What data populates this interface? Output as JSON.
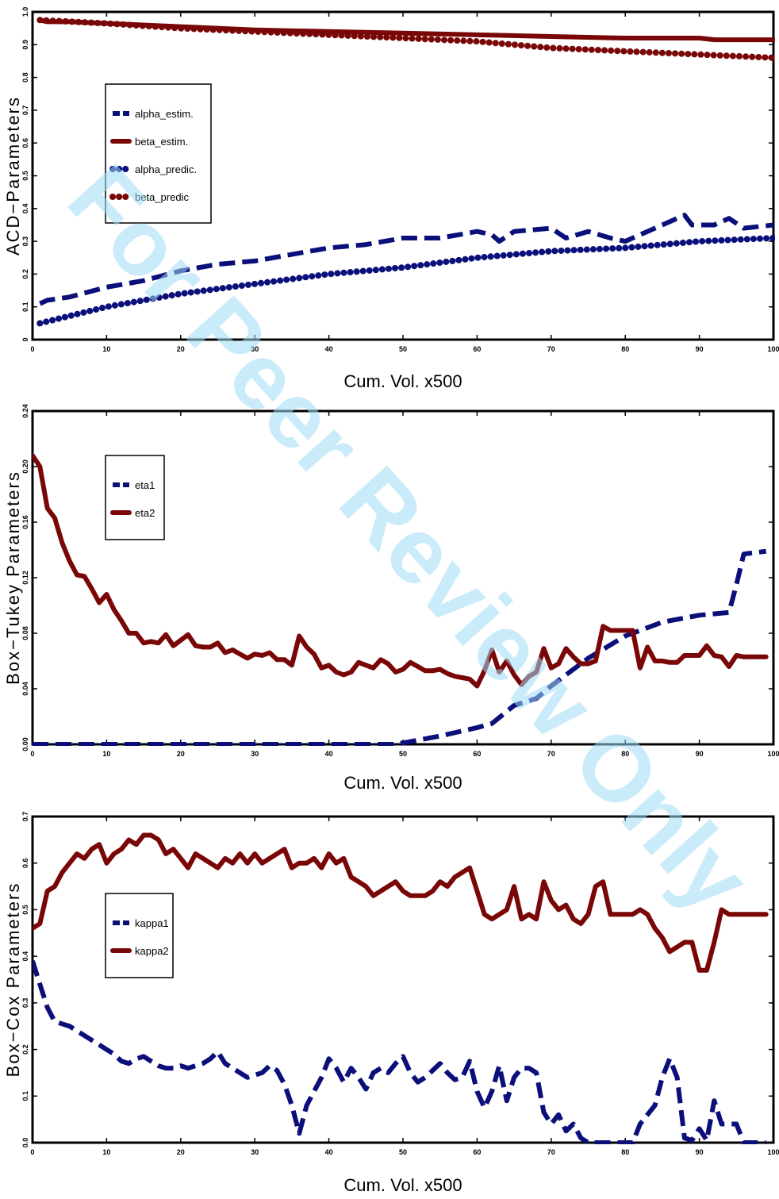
{
  "watermark": "For Peer Review Only",
  "colors": {
    "blue": "#0a0f7a",
    "red": "#7a0707",
    "axis": "#000000",
    "watermark": "#9fdcf5"
  },
  "chart_data": [
    {
      "type": "line",
      "xlabel": "Cum. Vol. x500",
      "ylabel": "ACD−Parameters",
      "xlim": [
        0,
        100
      ],
      "ylim": [
        0,
        1.0
      ],
      "xticks": [
        0,
        10,
        20,
        30,
        40,
        50,
        60,
        70,
        80,
        90,
        100
      ],
      "yticks": [
        0,
        0.1,
        0.2,
        0.3,
        0.4,
        0.5,
        0.6,
        0.7,
        0.8,
        0.9,
        1.0
      ],
      "yticklabels": [
        "0",
        "0.1",
        "0.2",
        "0.3",
        "0.4",
        "0.5",
        "0.6",
        "0.7",
        "0.8",
        "0.9",
        "1.0"
      ],
      "legend_position": "middle-left",
      "series": [
        {
          "name": "alpha_estim.",
          "color": "#0a0f7a",
          "style": "dashed",
          "x": [
            1,
            2,
            5,
            10,
            15,
            20,
            25,
            30,
            35,
            40,
            45,
            50,
            55,
            60,
            62,
            63,
            65,
            70,
            72,
            75,
            78,
            80,
            82,
            85,
            88,
            89,
            92,
            94,
            96,
            100
          ],
          "y": [
            0.11,
            0.12,
            0.13,
            0.16,
            0.18,
            0.21,
            0.23,
            0.24,
            0.26,
            0.28,
            0.29,
            0.31,
            0.31,
            0.33,
            0.32,
            0.3,
            0.33,
            0.34,
            0.31,
            0.33,
            0.31,
            0.3,
            0.32,
            0.35,
            0.38,
            0.35,
            0.35,
            0.37,
            0.34,
            0.35
          ]
        },
        {
          "name": "beta_estim.",
          "color": "#7a0707",
          "style": "solid",
          "x": [
            1,
            2,
            5,
            10,
            20,
            30,
            40,
            50,
            60,
            70,
            80,
            90,
            92,
            94,
            100
          ],
          "y": [
            0.975,
            0.97,
            0.97,
            0.965,
            0.955,
            0.945,
            0.94,
            0.935,
            0.93,
            0.925,
            0.92,
            0.92,
            0.915,
            0.915,
            0.915
          ]
        },
        {
          "name": "alpha_predic.",
          "color": "#0a0f7a",
          "style": "dotted",
          "x": [
            1,
            10,
            20,
            30,
            40,
            50,
            60,
            70,
            80,
            90,
            100
          ],
          "y": [
            0.05,
            0.1,
            0.14,
            0.17,
            0.2,
            0.22,
            0.25,
            0.27,
            0.28,
            0.3,
            0.31
          ]
        },
        {
          "name": "beta_predic",
          "color": "#7a0707",
          "style": "dotted",
          "x": [
            1,
            10,
            20,
            30,
            40,
            50,
            60,
            70,
            80,
            90,
            100
          ],
          "y": [
            0.975,
            0.965,
            0.95,
            0.94,
            0.93,
            0.92,
            0.91,
            0.89,
            0.88,
            0.87,
            0.86
          ]
        }
      ]
    },
    {
      "type": "line",
      "xlabel": "Cum. Vol. x500",
      "ylabel": "Box−Tukey  Parameters",
      "xlim": [
        0,
        100
      ],
      "ylim": [
        0,
        0.24
      ],
      "xticks": [
        0,
        10,
        20,
        30,
        40,
        50,
        60,
        70,
        80,
        90,
        100
      ],
      "yticks": [
        0,
        0.04,
        0.08,
        0.12,
        0.16,
        0.2,
        0.24
      ],
      "yticklabels": [
        "0.00",
        "0.04",
        "0.08",
        "0.12",
        "0.16",
        "0.20",
        "0.24"
      ],
      "legend_position": "top-left",
      "series": [
        {
          "name": "eta1",
          "color": "#0a0f7a",
          "style": "dashed",
          "x": [
            0,
            10,
            20,
            30,
            40,
            49,
            50,
            55,
            60,
            62,
            65,
            68,
            70,
            75,
            80,
            85,
            90,
            94,
            95,
            96,
            99
          ],
          "y": [
            0,
            0,
            0,
            0,
            0,
            0,
            0.001,
            0.006,
            0.012,
            0.015,
            0.028,
            0.033,
            0.042,
            0.062,
            0.078,
            0.088,
            0.093,
            0.095,
            0.115,
            0.137,
            0.139
          ]
        },
        {
          "name": "eta2",
          "color": "#7a0707",
          "style": "solid",
          "x": [
            0,
            1,
            2,
            3,
            4,
            5,
            6,
            7,
            8,
            9,
            10,
            11,
            12,
            13,
            14,
            15,
            16,
            17,
            18,
            19,
            20,
            21,
            22,
            23,
            24,
            25,
            26,
            27,
            28,
            29,
            30,
            31,
            32,
            33,
            34,
            35,
            36,
            37,
            38,
            39,
            40,
            41,
            42,
            43,
            44,
            45,
            46,
            47,
            48,
            49,
            50,
            51,
            52,
            53,
            54,
            55,
            56,
            57,
            58,
            59,
            60,
            61,
            62,
            63,
            64,
            65,
            66,
            67,
            68,
            69,
            70,
            71,
            72,
            73,
            74,
            75,
            76,
            77,
            78,
            79,
            80,
            81,
            82,
            83,
            84,
            85,
            86,
            87,
            88,
            89,
            90,
            91,
            92,
            93,
            94,
            95,
            96,
            97,
            98,
            99
          ],
          "y": [
            0.208,
            0.2,
            0.17,
            0.163,
            0.145,
            0.132,
            0.122,
            0.121,
            0.112,
            0.102,
            0.108,
            0.097,
            0.089,
            0.08,
            0.08,
            0.073,
            0.074,
            0.073,
            0.079,
            0.071,
            0.075,
            0.079,
            0.071,
            0.07,
            0.07,
            0.073,
            0.066,
            0.068,
            0.065,
            0.062,
            0.065,
            0.064,
            0.066,
            0.061,
            0.061,
            0.057,
            0.078,
            0.07,
            0.065,
            0.055,
            0.057,
            0.052,
            0.05,
            0.052,
            0.059,
            0.057,
            0.055,
            0.061,
            0.058,
            0.052,
            0.054,
            0.059,
            0.056,
            0.053,
            0.053,
            0.054,
            0.051,
            0.049,
            0.048,
            0.047,
            0.042,
            0.053,
            0.068,
            0.052,
            0.06,
            0.05,
            0.043,
            0.049,
            0.052,
            0.069,
            0.055,
            0.058,
            0.069,
            0.063,
            0.058,
            0.058,
            0.06,
            0.085,
            0.082,
            0.082,
            0.082,
            0.082,
            0.055,
            0.07,
            0.06,
            0.06,
            0.059,
            0.059,
            0.064,
            0.064,
            0.064,
            0.071,
            0.064,
            0.063,
            0.056,
            0.064,
            0.063,
            0.063,
            0.063,
            0.063
          ]
        }
      ]
    },
    {
      "type": "line",
      "xlabel": "Cum. Vol. x500",
      "ylabel": "Box−Cox  Parameters",
      "xlim": [
        0,
        100
      ],
      "ylim": [
        0,
        0.7
      ],
      "xticks": [
        0,
        10,
        20,
        30,
        40,
        50,
        60,
        70,
        80,
        90,
        100
      ],
      "yticks": [
        0,
        0.1,
        0.2,
        0.3,
        0.4,
        0.5,
        0.6,
        0.7
      ],
      "yticklabels": [
        "0.0",
        "0.1",
        "0.2",
        "0.3",
        "0.4",
        "0.5",
        "0.6",
        "0.7"
      ],
      "legend_position": "middle-left",
      "series": [
        {
          "name": "kappa1",
          "color": "#0a0f7a",
          "style": "dashed",
          "x": [
            0,
            1,
            2,
            3,
            4,
            5,
            6,
            7,
            8,
            9,
            10,
            11,
            12,
            13,
            14,
            15,
            16,
            17,
            18,
            19,
            20,
            21,
            22,
            23,
            24,
            25,
            26,
            27,
            28,
            29,
            30,
            31,
            32,
            33,
            34,
            35,
            36,
            37,
            38,
            39,
            40,
            41,
            42,
            43,
            44,
            45,
            46,
            47,
            48,
            49,
            50,
            51,
            52,
            53,
            54,
            55,
            56,
            57,
            58,
            59,
            60,
            61,
            62,
            63,
            64,
            65,
            66,
            67,
            68,
            69,
            70,
            71,
            72,
            73,
            74,
            75,
            76,
            77,
            78,
            79,
            80,
            81,
            82,
            83,
            84,
            85,
            86,
            87,
            88,
            89,
            90,
            91,
            92,
            93,
            94,
            95,
            96,
            97,
            98,
            99
          ],
          "y": [
            0.39,
            0.34,
            0.29,
            0.26,
            0.255,
            0.25,
            0.24,
            0.23,
            0.22,
            0.21,
            0.2,
            0.19,
            0.175,
            0.17,
            0.18,
            0.185,
            0.175,
            0.165,
            0.16,
            0.16,
            0.165,
            0.16,
            0.165,
            0.17,
            0.18,
            0.195,
            0.17,
            0.16,
            0.15,
            0.14,
            0.145,
            0.15,
            0.165,
            0.155,
            0.125,
            0.08,
            0.02,
            0.08,
            0.11,
            0.14,
            0.18,
            0.16,
            0.13,
            0.16,
            0.14,
            0.115,
            0.15,
            0.16,
            0.15,
            0.17,
            0.185,
            0.15,
            0.13,
            0.14,
            0.155,
            0.17,
            0.15,
            0.135,
            0.14,
            0.175,
            0.11,
            0.075,
            0.11,
            0.165,
            0.09,
            0.14,
            0.16,
            0.16,
            0.15,
            0.065,
            0.04,
            0.06,
            0.025,
            0.04,
            0.01,
            0,
            0,
            0,
            0,
            0,
            0,
            0,
            0.04,
            0.06,
            0.08,
            0.14,
            0.18,
            0.14,
            0.01,
            0.005,
            0.03,
            0.005,
            0.09,
            0.04,
            0.04,
            0.04,
            0,
            0,
            0,
            0
          ]
        },
        {
          "name": "kappa2",
          "color": "#7a0707",
          "style": "solid",
          "x": [
            0,
            1,
            2,
            3,
            4,
            5,
            6,
            7,
            8,
            9,
            10,
            11,
            12,
            13,
            14,
            15,
            16,
            17,
            18,
            19,
            20,
            21,
            22,
            23,
            24,
            25,
            26,
            27,
            28,
            29,
            30,
            31,
            32,
            33,
            34,
            35,
            36,
            37,
            38,
            39,
            40,
            41,
            42,
            43,
            44,
            45,
            46,
            47,
            48,
            49,
            50,
            51,
            52,
            53,
            54,
            55,
            56,
            57,
            58,
            59,
            60,
            61,
            62,
            63,
            64,
            65,
            66,
            67,
            68,
            69,
            70,
            71,
            72,
            73,
            74,
            75,
            76,
            77,
            78,
            79,
            80,
            81,
            82,
            83,
            84,
            85,
            86,
            87,
            88,
            89,
            90,
            91,
            92,
            93,
            94,
            95,
            96,
            97,
            98,
            99
          ],
          "y": [
            0.46,
            0.47,
            0.54,
            0.55,
            0.58,
            0.6,
            0.62,
            0.61,
            0.63,
            0.64,
            0.6,
            0.62,
            0.63,
            0.65,
            0.64,
            0.66,
            0.66,
            0.65,
            0.62,
            0.63,
            0.61,
            0.59,
            0.62,
            0.61,
            0.6,
            0.59,
            0.61,
            0.6,
            0.62,
            0.6,
            0.62,
            0.6,
            0.61,
            0.62,
            0.63,
            0.59,
            0.6,
            0.6,
            0.61,
            0.59,
            0.62,
            0.6,
            0.61,
            0.57,
            0.56,
            0.55,
            0.53,
            0.54,
            0.55,
            0.56,
            0.54,
            0.53,
            0.53,
            0.53,
            0.54,
            0.56,
            0.55,
            0.57,
            0.58,
            0.59,
            0.54,
            0.49,
            0.48,
            0.49,
            0.5,
            0.55,
            0.48,
            0.49,
            0.48,
            0.56,
            0.52,
            0.5,
            0.51,
            0.48,
            0.47,
            0.49,
            0.55,
            0.56,
            0.49,
            0.49,
            0.49,
            0.49,
            0.5,
            0.49,
            0.46,
            0.44,
            0.41,
            0.42,
            0.43,
            0.43,
            0.37,
            0.37,
            0.43,
            0.5,
            0.49,
            0.49,
            0.49,
            0.49,
            0.49,
            0.49
          ]
        }
      ]
    }
  ]
}
